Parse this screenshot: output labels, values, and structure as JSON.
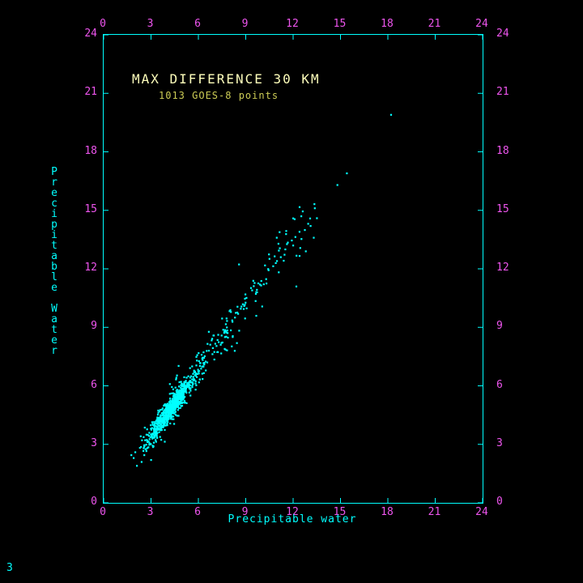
{
  "page": {
    "background": "#000000",
    "frame_number": "3"
  },
  "chart_data": {
    "type": "scatter",
    "title": "MAX DIFFERENCE 30 KM",
    "subtitle": "1013 GOES-8 points",
    "xlabel": "Precipitable water",
    "ylabel": "Precipitable Water",
    "xlim": [
      0,
      24
    ],
    "ylim": [
      0,
      24
    ],
    "tick_values": [
      0,
      3,
      6,
      9,
      12,
      15,
      18,
      21,
      24
    ],
    "grid": "off",
    "legend": "none",
    "point_count_total": 1013,
    "colors": {
      "axis": "#00ffff",
      "marker": "#00ffff",
      "tick_labels": "#ee55ee",
      "title": "#ffffbb",
      "subtitle": "#cccc55",
      "axis_labels": "#00ffff",
      "frame_number": "#00ffff"
    },
    "outlier_points": [
      [
        18.2,
        19.9
      ],
      [
        15.4,
        16.9
      ],
      [
        14.8,
        16.3
      ],
      [
        13.5,
        14.6
      ],
      [
        13.1,
        14.2
      ],
      [
        12.4,
        13.9
      ],
      [
        12.0,
        13.2
      ],
      [
        11.5,
        13.0
      ],
      [
        12.8,
        12.9
      ],
      [
        13.3,
        13.6
      ],
      [
        9.4,
        10.9
      ],
      [
        8.9,
        10.1
      ],
      [
        7.8,
        9.0
      ],
      [
        6.2,
        7.6
      ],
      [
        5.9,
        7.3
      ],
      [
        5.6,
        7.0
      ],
      [
        2.1,
        1.9
      ],
      [
        2.4,
        2.1
      ],
      [
        1.9,
        2.3
      ],
      [
        1.75,
        2.45
      ],
      [
        2.0,
        2.6
      ],
      [
        12.2,
        11.1
      ],
      [
        10.9,
        12.3
      ],
      [
        9.9,
        11.2
      ],
      [
        3.0,
        2.2
      ]
    ],
    "generated_clusters": [
      {
        "count": 840,
        "x_dist": "gauss",
        "x_mean": 4.3,
        "x_sd": 0.75,
        "x_min": 2.2,
        "x_max": 6.4,
        "slope": 1.08,
        "intercept": 0.25,
        "y_jitter": 0.27
      },
      {
        "count": 110,
        "x_dist": "uniform",
        "x_min": 5.8,
        "x_max": 10.3,
        "slope": 1.09,
        "intercept": 0.35,
        "y_jitter": 0.5,
        "bias": 1.2
      },
      {
        "count": 38,
        "x_dist": "uniform",
        "x_min": 10.2,
        "x_max": 13.4,
        "slope": 1.1,
        "intercept": 0.55,
        "y_jitter": 0.55,
        "bias": 1.0
      }
    ]
  }
}
